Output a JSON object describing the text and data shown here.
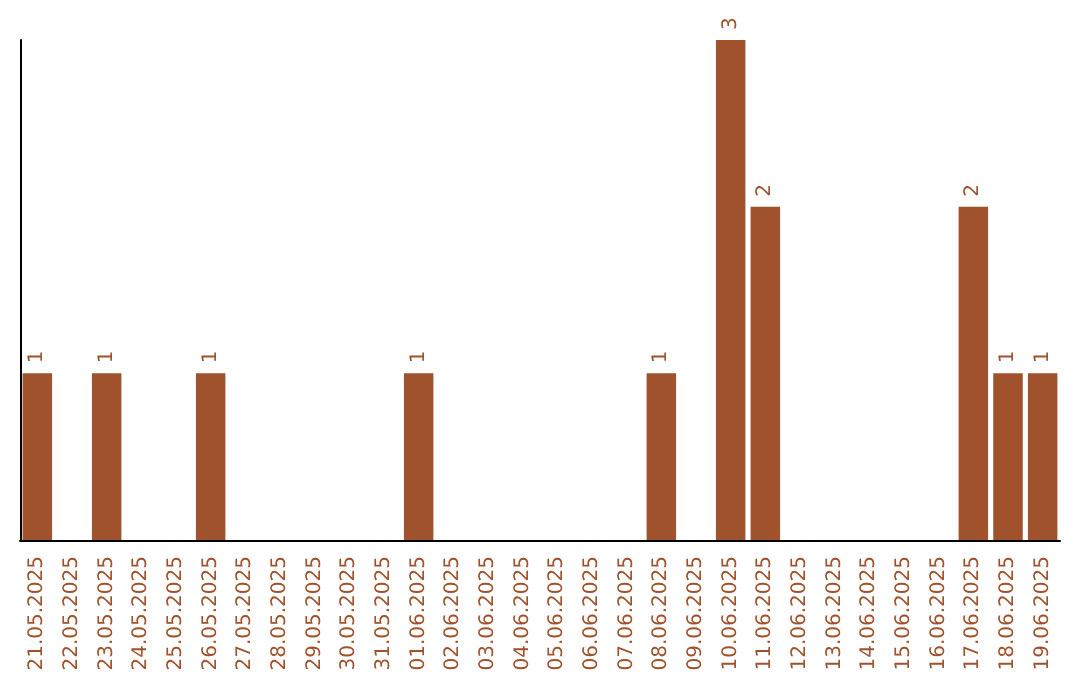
{
  "chart_data": {
    "type": "bar",
    "categories": [
      "21.05.2025",
      "22.05.2025",
      "23.05.2025",
      "24.05.2025",
      "25.05.2025",
      "26.05.2025",
      "27.05.2025",
      "28.05.2025",
      "29.05.2025",
      "30.05.2025",
      "31.05.2025",
      "01.06.2025",
      "02.06.2025",
      "03.06.2025",
      "04.06.2025",
      "05.06.2025",
      "06.06.2025",
      "07.06.2025",
      "08.06.2025",
      "09.06.2025",
      "10.06.2025",
      "11.06.2025",
      "12.06.2025",
      "13.06.2025",
      "14.06.2025",
      "15.06.2025",
      "16.06.2025",
      "17.06.2025",
      "18.06.2025",
      "19.06.2025"
    ],
    "values": [
      1,
      0,
      1,
      0,
      0,
      1,
      0,
      0,
      0,
      0,
      0,
      1,
      0,
      0,
      0,
      0,
      0,
      0,
      1,
      0,
      3,
      2,
      0,
      0,
      0,
      0,
      0,
      2,
      1,
      1
    ],
    "value_labels": [
      "1",
      null,
      "1",
      null,
      null,
      "1",
      null,
      null,
      null,
      null,
      null,
      "1",
      null,
      null,
      null,
      null,
      null,
      null,
      "1",
      null,
      "3",
      "2",
      null,
      null,
      null,
      null,
      null,
      "2",
      "1",
      "1"
    ],
    "color": "#a0522d"
  }
}
